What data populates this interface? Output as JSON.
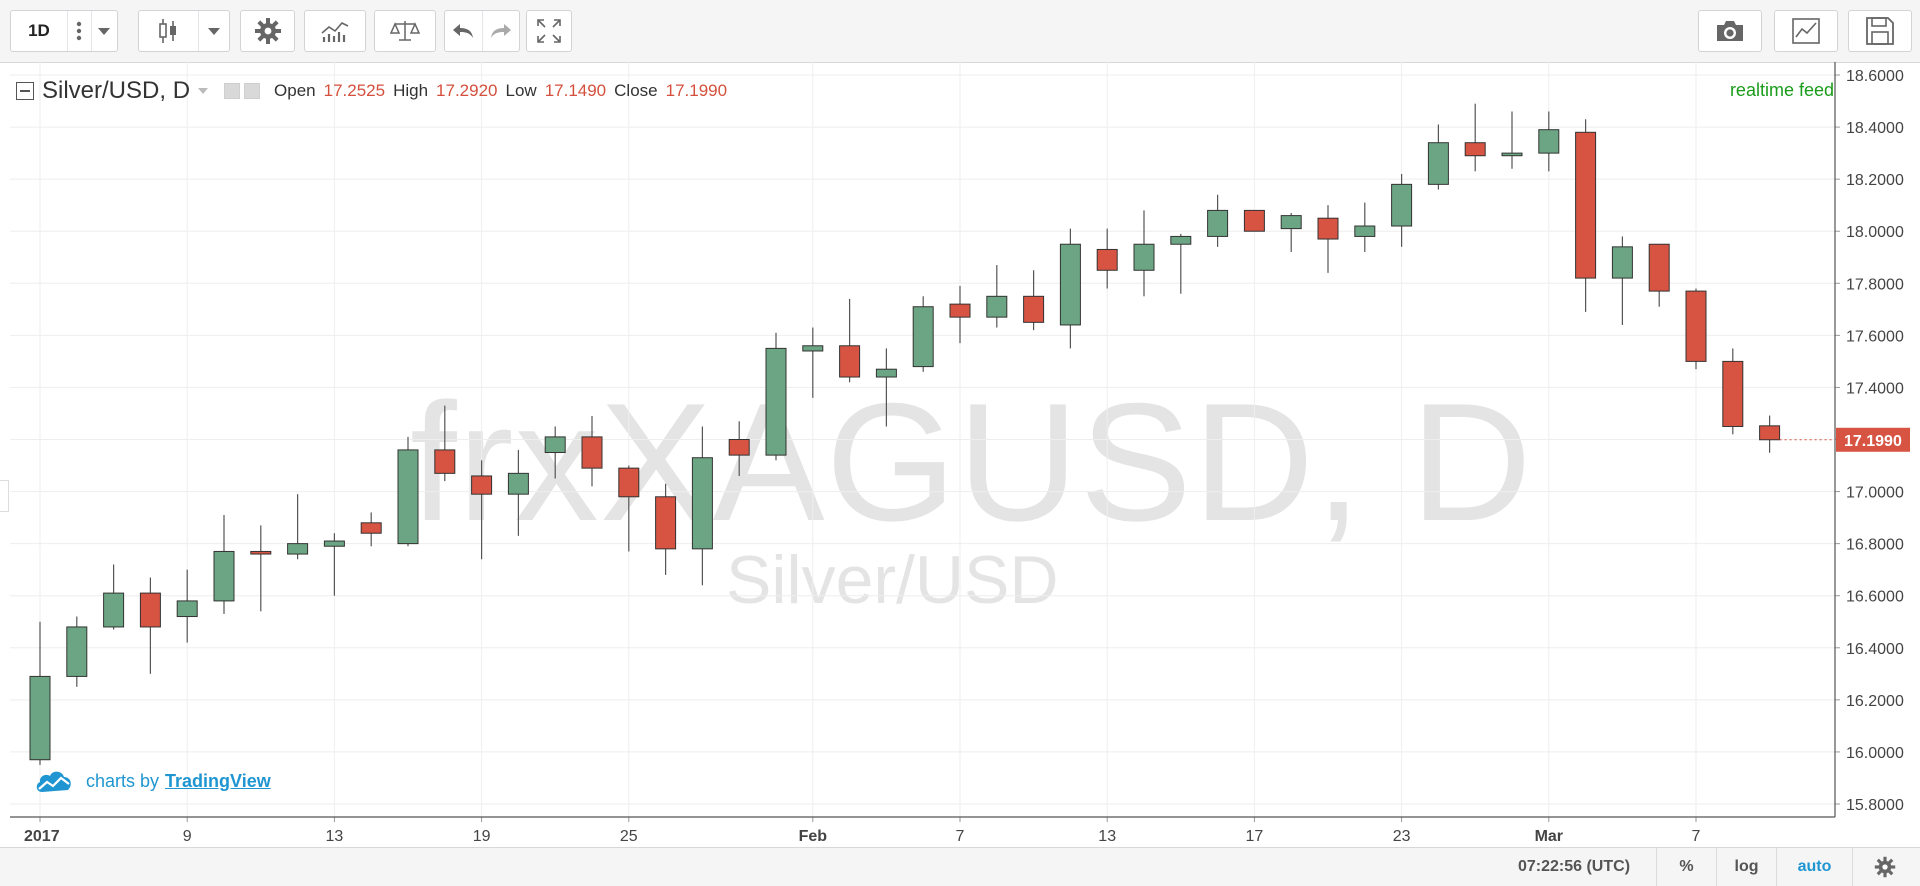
{
  "toolbar": {
    "interval_label": "1D",
    "icons": [
      "more-vertical-icon",
      "chevron-down-icon",
      "candlestick-icon",
      "chevron-down-icon",
      "gear-icon",
      "indicators-icon",
      "compare-scale-icon",
      "undo-icon",
      "redo-icon",
      "fullscreen-icon",
      "camera-icon",
      "chart-template-icon",
      "save-icon"
    ]
  },
  "legend": {
    "symbol": "Silver/USD, D",
    "open_label": "Open",
    "open_value": "17.2525",
    "high_label": "High",
    "high_value": "17.2920",
    "low_label": "Low",
    "low_value": "17.1490",
    "close_label": "Close",
    "close_value": "17.1990"
  },
  "feed_status": "realtime feed",
  "watermark": {
    "main": "frxXAGUSD, D",
    "sub": "Silver/USD"
  },
  "credit": {
    "prefix": "charts by",
    "brand": "TradingView",
    "icon": "tradingview-cloud-icon"
  },
  "status_bar": {
    "time": "07:22:56 (UTC)",
    "percent": "%",
    "log": "log",
    "auto": "auto",
    "settings_icon": "gear-icon"
  },
  "colors": {
    "up": "#6ba583",
    "down": "#d75442",
    "wick": "#555555",
    "grid": "#eeeeee",
    "price_tag": "#d75442",
    "accent": "#1f96d1"
  },
  "chart_data": {
    "type": "candlestick",
    "ylim": [
      15.75,
      18.65
    ],
    "y_ticks": [
      "15.8000",
      "16.0000",
      "16.2000",
      "16.4000",
      "16.6000",
      "16.8000",
      "17.0000",
      "17.2000",
      "17.4000",
      "17.6000",
      "17.8000",
      "18.0000",
      "18.2000",
      "18.4000",
      "18.6000"
    ],
    "x_ticks": [
      {
        "i": 0,
        "label": "2017",
        "bold": true
      },
      {
        "i": 4,
        "label": "9"
      },
      {
        "i": 8,
        "label": "13"
      },
      {
        "i": 12,
        "label": "19"
      },
      {
        "i": 16,
        "label": "25"
      },
      {
        "i": 21,
        "label": "Feb",
        "bold": true
      },
      {
        "i": 25,
        "label": "7"
      },
      {
        "i": 29,
        "label": "13"
      },
      {
        "i": 33,
        "label": "17"
      },
      {
        "i": 37,
        "label": "23"
      },
      {
        "i": 41,
        "label": "Mar",
        "bold": true
      },
      {
        "i": 45,
        "label": "7"
      }
    ],
    "last_price": "17.1990",
    "candles": [
      {
        "o": 15.97,
        "h": 16.5,
        "l": 15.95,
        "c": 16.29
      },
      {
        "o": 16.29,
        "h": 16.52,
        "l": 16.25,
        "c": 16.48
      },
      {
        "o": 16.48,
        "h": 16.72,
        "l": 16.47,
        "c": 16.61
      },
      {
        "o": 16.61,
        "h": 16.67,
        "l": 16.3,
        "c": 16.48
      },
      {
        "o": 16.52,
        "h": 16.7,
        "l": 16.42,
        "c": 16.58
      },
      {
        "o": 16.58,
        "h": 16.91,
        "l": 16.53,
        "c": 16.77
      },
      {
        "o": 16.77,
        "h": 16.87,
        "l": 16.54,
        "c": 16.76
      },
      {
        "o": 16.76,
        "h": 16.99,
        "l": 16.74,
        "c": 16.8
      },
      {
        "o": 16.79,
        "h": 16.84,
        "l": 16.6,
        "c": 16.81
      },
      {
        "o": 16.88,
        "h": 16.92,
        "l": 16.79,
        "c": 16.84
      },
      {
        "o": 16.8,
        "h": 17.21,
        "l": 16.79,
        "c": 17.16
      },
      {
        "o": 17.16,
        "h": 17.33,
        "l": 17.04,
        "c": 17.07
      },
      {
        "o": 17.06,
        "h": 17.12,
        "l": 16.74,
        "c": 16.99
      },
      {
        "o": 16.99,
        "h": 17.16,
        "l": 16.83,
        "c": 17.07
      },
      {
        "o": 17.15,
        "h": 17.25,
        "l": 17.05,
        "c": 17.21
      },
      {
        "o": 17.21,
        "h": 17.29,
        "l": 17.02,
        "c": 17.09
      },
      {
        "o": 17.09,
        "h": 17.1,
        "l": 16.77,
        "c": 16.98
      },
      {
        "o": 16.98,
        "h": 17.03,
        "l": 16.68,
        "c": 16.78
      },
      {
        "o": 16.78,
        "h": 17.25,
        "l": 16.64,
        "c": 17.13
      },
      {
        "o": 17.2,
        "h": 17.27,
        "l": 17.06,
        "c": 17.14
      },
      {
        "o": 17.14,
        "h": 17.61,
        "l": 17.12,
        "c": 17.55
      },
      {
        "o": 17.54,
        "h": 17.63,
        "l": 17.36,
        "c": 17.56
      },
      {
        "o": 17.56,
        "h": 17.74,
        "l": 17.42,
        "c": 17.44
      },
      {
        "o": 17.44,
        "h": 17.55,
        "l": 17.25,
        "c": 17.47
      },
      {
        "o": 17.48,
        "h": 17.75,
        "l": 17.46,
        "c": 17.71
      },
      {
        "o": 17.72,
        "h": 17.79,
        "l": 17.57,
        "c": 17.67
      },
      {
        "o": 17.67,
        "h": 17.87,
        "l": 17.63,
        "c": 17.75
      },
      {
        "o": 17.75,
        "h": 17.85,
        "l": 17.62,
        "c": 17.65
      },
      {
        "o": 17.64,
        "h": 18.01,
        "l": 17.55,
        "c": 17.95
      },
      {
        "o": 17.93,
        "h": 18.01,
        "l": 17.78,
        "c": 17.85
      },
      {
        "o": 17.85,
        "h": 18.08,
        "l": 17.75,
        "c": 17.95
      },
      {
        "o": 17.95,
        "h": 17.99,
        "l": 17.76,
        "c": 17.98
      },
      {
        "o": 17.98,
        "h": 18.14,
        "l": 17.94,
        "c": 18.08
      },
      {
        "o": 18.08,
        "h": 18.08,
        "l": 18.0,
        "c": 18.0
      },
      {
        "o": 18.01,
        "h": 18.07,
        "l": 17.92,
        "c": 18.06
      },
      {
        "o": 18.05,
        "h": 18.1,
        "l": 17.84,
        "c": 17.97
      },
      {
        "o": 17.98,
        "h": 18.11,
        "l": 17.92,
        "c": 18.02
      },
      {
        "o": 18.02,
        "h": 18.22,
        "l": 17.94,
        "c": 18.18
      },
      {
        "o": 18.18,
        "h": 18.41,
        "l": 18.16,
        "c": 18.34
      },
      {
        "o": 18.34,
        "h": 18.49,
        "l": 18.23,
        "c": 18.29
      },
      {
        "o": 18.29,
        "h": 18.46,
        "l": 18.24,
        "c": 18.3
      },
      {
        "o": 18.3,
        "h": 18.46,
        "l": 18.23,
        "c": 18.39
      },
      {
        "o": 18.38,
        "h": 18.43,
        "l": 17.69,
        "c": 17.82
      },
      {
        "o": 17.82,
        "h": 17.98,
        "l": 17.64,
        "c": 17.94
      },
      {
        "o": 17.95,
        "h": 17.95,
        "l": 17.71,
        "c": 17.77
      },
      {
        "o": 17.77,
        "h": 17.78,
        "l": 17.47,
        "c": 17.5
      },
      {
        "o": 17.5,
        "h": 17.55,
        "l": 17.22,
        "c": 17.25
      },
      {
        "o": 17.2525,
        "h": 17.292,
        "l": 17.149,
        "c": 17.199
      }
    ]
  }
}
